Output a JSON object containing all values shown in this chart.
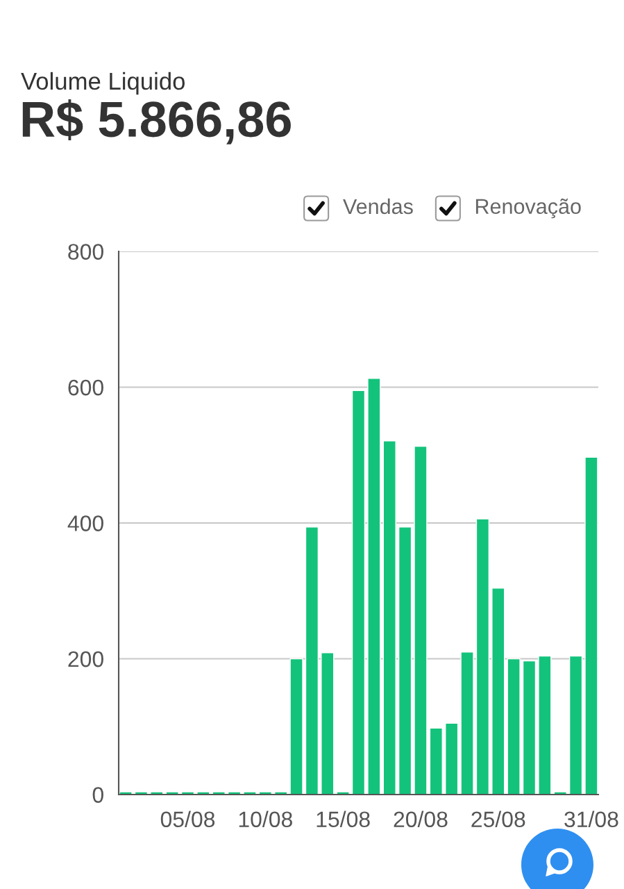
{
  "chart_data": {
    "type": "bar",
    "title": "Volume Liquido",
    "subtitle": "R$ 5.866,86",
    "categories": [
      null,
      null,
      null,
      null,
      "05/08",
      null,
      null,
      null,
      null,
      "10/08",
      null,
      null,
      null,
      null,
      "15/08",
      null,
      null,
      null,
      null,
      "20/08",
      null,
      null,
      null,
      null,
      "25/08",
      null,
      null,
      null,
      null,
      null,
      "31/08"
    ],
    "values": [
      4,
      4,
      4,
      4,
      4,
      4,
      4,
      4,
      4,
      4,
      4,
      200,
      394,
      209,
      4,
      595,
      613,
      521,
      394,
      513,
      98,
      105,
      210,
      406,
      304,
      200,
      197,
      204,
      4,
      204,
      497
    ],
    "color": "#13c37b",
    "ylim": [
      0,
      800
    ],
    "yticks": [
      0,
      200,
      400,
      600,
      800
    ],
    "grid": "y",
    "annotations": [
      "Vendas",
      "Renovação"
    ]
  }
}
